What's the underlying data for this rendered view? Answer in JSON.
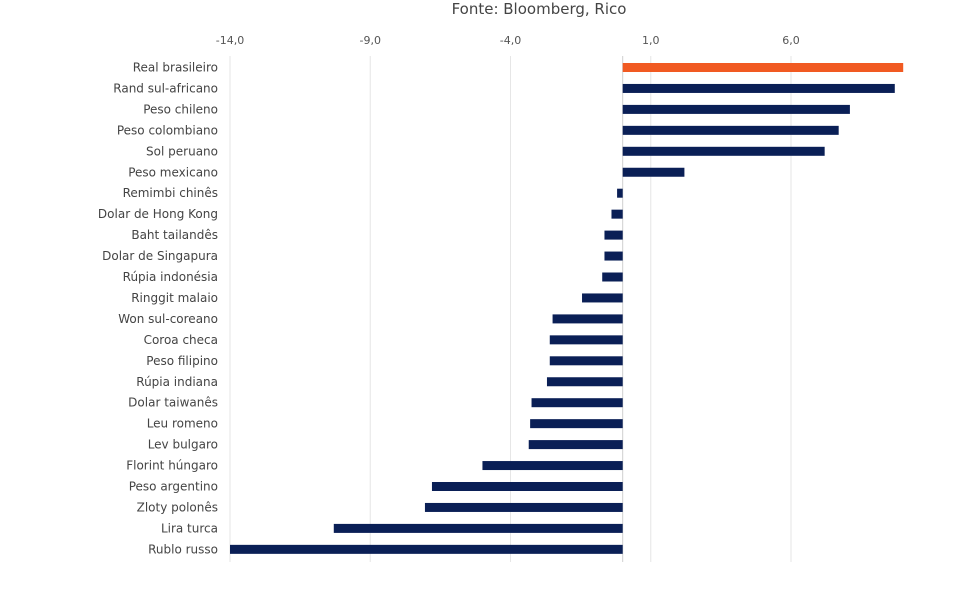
{
  "source_note": "Fonte: Bloomberg, Rico",
  "chart_data": {
    "type": "bar",
    "orientation": "horizontal",
    "title": "",
    "xlabel": "",
    "ylabel": "",
    "xlim": [
      -14,
      10.5
    ],
    "x_ticks": [
      -14,
      -9,
      -4,
      1,
      6
    ],
    "x_tick_labels": [
      "-14,0",
      "-9,0",
      "-4,0",
      "1,0",
      "6,0"
    ],
    "grid": "vertical",
    "colors": {
      "default": "#0a1f56",
      "highlight": "#f15a22"
    },
    "categories": [
      "Real brasileiro",
      "Rand sul-africano",
      "Peso chileno",
      "Peso colombiano",
      "Sol peruano",
      "Peso mexicano",
      "Remimbi chinês",
      "Dolar de Hong Kong",
      "Baht tailandês",
      "Dolar de Singapura",
      "Rúpia indonésia",
      "Ringgit malaio",
      "Won sul-coreano",
      "Coroa checa",
      "Peso filipino",
      "Rúpia indiana",
      "Dolar taiwanês",
      "Leu romeno",
      "Lev bulgaro",
      "Florint húngaro",
      "Peso argentino",
      "Zloty polonês",
      "Lira turca",
      "Rublo russo"
    ],
    "values": [
      10.0,
      9.7,
      8.1,
      7.7,
      7.2,
      2.2,
      -0.2,
      -0.4,
      -0.65,
      -0.65,
      -0.73,
      -1.45,
      -2.5,
      -2.6,
      -2.6,
      -2.7,
      -3.25,
      -3.3,
      -3.35,
      -5.0,
      -6.8,
      -7.05,
      -10.3,
      -14.0
    ],
    "highlight": [
      "Real brasileiro"
    ]
  }
}
